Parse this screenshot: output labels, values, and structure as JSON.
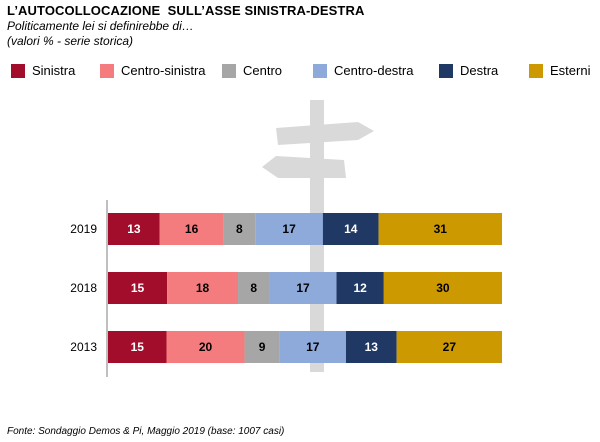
{
  "header": {
    "title": "L’AUTOCOLLOCAZIONE  SULL’ASSE SINISTRA-DESTRA",
    "subtitle": "Politicamente lei si definirebbe  di…",
    "note": "(valori % - serie storica)"
  },
  "legend": [
    {
      "label": "Sinistra",
      "color": "#a30d2c"
    },
    {
      "label": "Centro-sinistra",
      "color": "#f47c7e"
    },
    {
      "label": "Centro",
      "color": "#a6a6a6"
    },
    {
      "label": "Centro-destra",
      "color": "#8eaadb"
    },
    {
      "label": "Destra",
      "color": "#1f3864"
    },
    {
      "label": "Esterni",
      "color": "#cc9900"
    }
  ],
  "chart_data": {
    "type": "bar",
    "orientation": "horizontal",
    "stacked": true,
    "categories": [
      "2019",
      "2018",
      "2013"
    ],
    "series": [
      {
        "name": "Sinistra",
        "color": "#a30d2c",
        "values": [
          13,
          15,
          15
        ]
      },
      {
        "name": "Centro-sinistra",
        "color": "#f47c7e",
        "values": [
          16,
          18,
          20
        ]
      },
      {
        "name": "Centro",
        "color": "#a6a6a6",
        "values": [
          8,
          8,
          9
        ]
      },
      {
        "name": "Centro-destra",
        "color": "#8eaadb",
        "values": [
          17,
          17,
          17
        ]
      },
      {
        "name": "Destra",
        "color": "#1f3864",
        "values": [
          14,
          12,
          13
        ]
      },
      {
        "name": "Esterni",
        "color": "#cc9900",
        "values": [
          31,
          30,
          27
        ]
      }
    ],
    "legend_position": "top",
    "grid": false
  },
  "source": "Fonte: Sondaggio Demos & Pi, Maggio 2019 (base: 1007 casi)"
}
